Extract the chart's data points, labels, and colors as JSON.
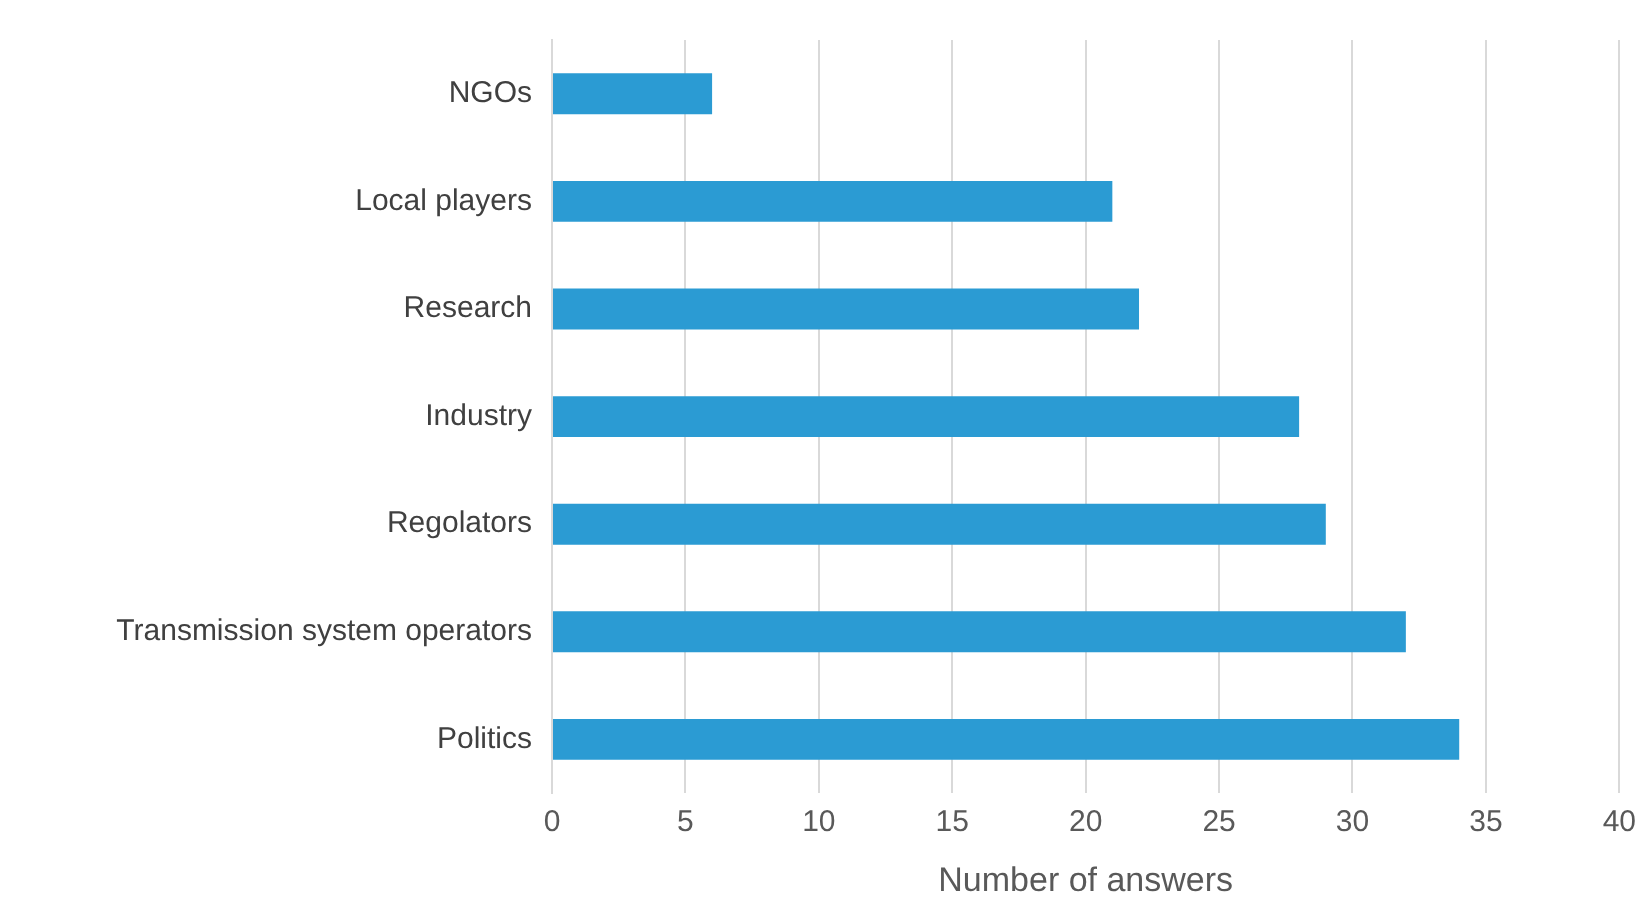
{
  "chart_data": {
    "type": "bar",
    "orientation": "horizontal",
    "xlabel": "Number of answers",
    "categories": [
      "NGOs",
      "Local players",
      "Research",
      "Industry",
      "Regolators",
      "Transmission system operators",
      "Politics"
    ],
    "values": [
      6,
      21,
      22,
      28,
      29,
      32,
      34
    ],
    "color": "#2b9bd3",
    "xlim": [
      0,
      40
    ],
    "xticks": [
      0,
      5,
      10,
      15,
      20,
      25,
      30,
      35,
      40
    ],
    "grid": "x",
    "legend": false
  }
}
